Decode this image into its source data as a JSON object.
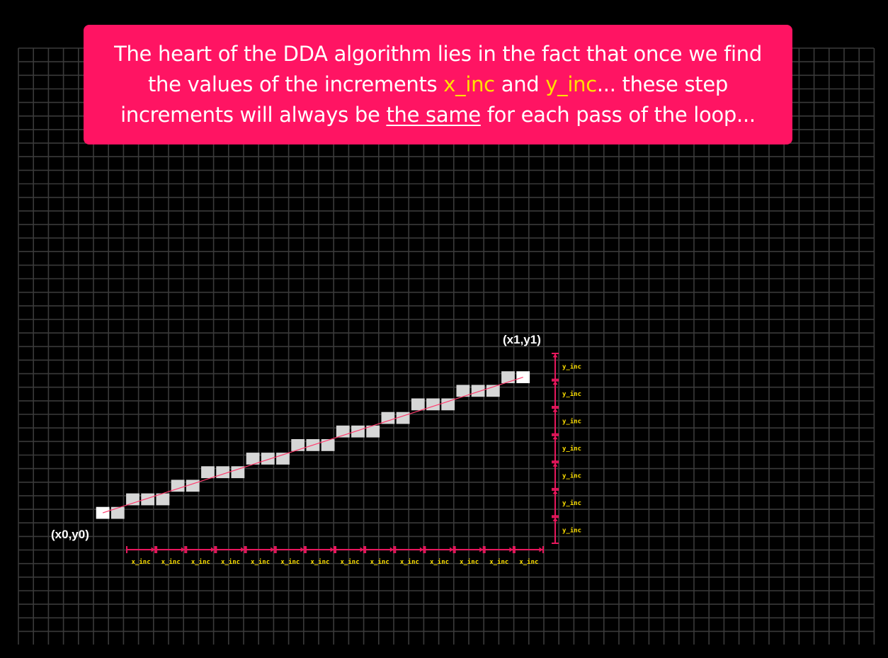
{
  "banner": {
    "t1": "The heart of the DDA algorithm lies in the fact that once we find",
    "t2": "the values of the increments ",
    "t3": "x_inc",
    "t4": " and ",
    "t5": "y_inc",
    "t6": "...  these step",
    "t7": "increments will always be ",
    "t8": "the same",
    "t9": " for each pass of the loop..."
  },
  "diagram": {
    "start_label": "(x0,y0)",
    "end_label": "(x1,y1)",
    "x_inc_label": "x_inc",
    "y_inc_label": "y_inc",
    "x_inc_count": 14,
    "y_inc_count": 7,
    "line_color": "#ff3c6e",
    "marker_color": "#e8175d",
    "grid_color": "#3a3a3a",
    "pixel_color": "#d6d6d6",
    "endpoint_color": "#ffffff"
  }
}
